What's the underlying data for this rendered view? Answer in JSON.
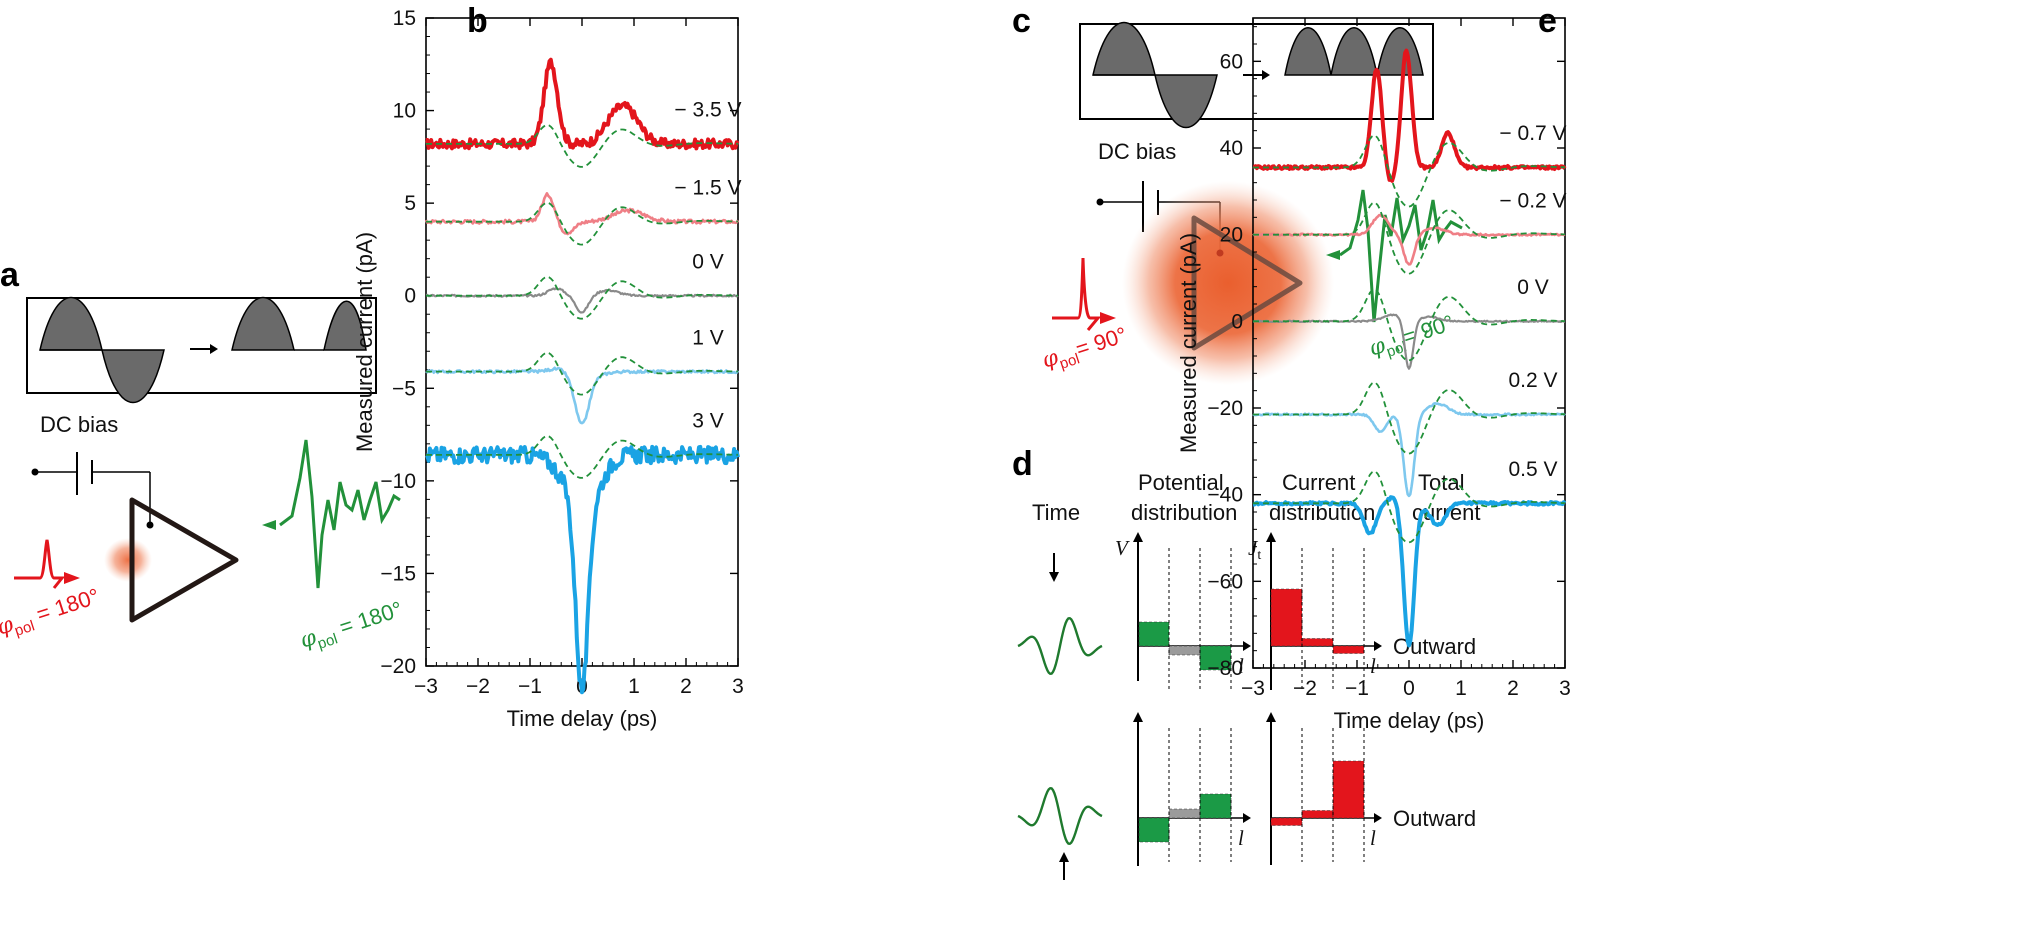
{
  "panels": {
    "a": "a",
    "b": "b",
    "c": "c",
    "d": "d",
    "e": "e"
  },
  "colors": {
    "red": "#e3151c",
    "lightred": "#ef7f86",
    "gray": "#8a8a8a",
    "lightblue": "#7ec8ee",
    "blue": "#1aa3e4",
    "green": "#22913a",
    "grayfill": "#6a6a6a",
    "orange": "#ec6a3c"
  },
  "panel_a": {
    "dc_bias": "DC bias",
    "phi_red": "φ",
    "pol_red": "pol",
    "val_red": " = 180°",
    "phi_green": "φ",
    "pol_green": "pol",
    "val_green": " = 180°"
  },
  "panel_c": {
    "dc_bias": "DC bias",
    "phi_red": "φ",
    "pol_red": "pol",
    "val_red": "= 90°",
    "phi_green": "φ",
    "pol_green": "pol",
    "val_green": "= 90°"
  },
  "panel_d": {
    "headers": {
      "time": "Time",
      "potential_1": "Potential",
      "potential_2": "distribution",
      "current_1": "Current",
      "current_2": "distribution",
      "total_1": "Total",
      "total_2": "current"
    },
    "v_axis": "V",
    "j_axis": "J",
    "j_sub": "t",
    "l_axis": "l",
    "outward": "Outward",
    "rows": [
      {
        "potential": [
          0.8,
          -0.3,
          -0.8
        ],
        "current": [
          1.9,
          0.25,
          -0.25
        ],
        "arrow": "down"
      },
      {
        "potential": [
          -0.8,
          0.3,
          0.8
        ],
        "current": [
          -0.25,
          0.25,
          1.9
        ],
        "arrow": "up"
      }
    ]
  },
  "chart_data": [
    {
      "panel": "b",
      "type": "line",
      "xlabel": "Time delay (ps)",
      "ylabel": "Measured current (pA)",
      "xlim": [
        -3,
        3
      ],
      "ylim": [
        -20,
        15
      ],
      "xticks": [
        "−3",
        "−2",
        "−1",
        "0",
        "1",
        "2",
        "3"
      ],
      "yticks": [
        "−20",
        "−15",
        "−10",
        "−5",
        "0",
        "5",
        "10",
        "15"
      ],
      "series": [
        {
          "name": "− 3.5 V",
          "offset": 8.2,
          "color": "red",
          "width": 4,
          "noise": 0.25,
          "features": [
            [
              -0.6,
              4.4,
              0.13
            ],
            [
              0.85,
              1.8,
              0.25
            ],
            [
              0.55,
              0.6,
              0.2
            ]
          ],
          "x": [
            -3,
            -2.5,
            -2,
            -1.5,
            -1,
            -0.8,
            -0.6,
            -0.4,
            -0.2,
            0,
            0.2,
            0.5,
            0.8,
            1.0,
            1.3,
            1.6,
            2,
            2.5,
            3
          ],
          "y": [
            8.2,
            8.2,
            8.1,
            8.3,
            8.5,
            9.5,
            12.6,
            8.6,
            8,
            7.9,
            8.5,
            9.3,
            10.2,
            9.6,
            8.5,
            8.1,
            8.2,
            8.2,
            8.2
          ]
        },
        {
          "name": "− 1.5 V",
          "offset": 4.0,
          "color": "lightred",
          "width": 2.6,
          "noise": 0.1,
          "features": [
            [
              -0.65,
              1.5,
              0.12
            ],
            [
              -0.3,
              -0.6,
              0.15
            ],
            [
              0.9,
              0.6,
              0.3
            ]
          ],
          "x": [
            -3,
            -2,
            -1,
            -0.65,
            -0.3,
            0,
            0.5,
            0.9,
            1.5,
            2,
            3
          ],
          "y": [
            4,
            4,
            4.1,
            5.5,
            3.4,
            3.5,
            3.9,
            4.6,
            4.1,
            4,
            4
          ]
        },
        {
          "name": "0 V",
          "offset": 0,
          "color": "gray",
          "width": 2.2,
          "noise": 0.05,
          "features": [
            [
              -0.5,
              0.4,
              0.15
            ],
            [
              0,
              -0.9,
              0.12
            ],
            [
              0.5,
              0.3,
              0.2
            ]
          ],
          "x": [
            -3,
            -1,
            -0.5,
            0,
            0.5,
            1,
            3
          ],
          "y": [
            0,
            0,
            0.4,
            -0.9,
            0.3,
            0,
            0
          ]
        },
        {
          "name": "1 V",
          "offset": -4.1,
          "color": "lightblue",
          "width": 2.6,
          "noise": 0.07,
          "features": [
            [
              -0.4,
              0.35,
              0.2
            ],
            [
              0,
              -2.4,
              0.13
            ],
            [
              -0.05,
              -0.5,
              0.3
            ]
          ],
          "x": [
            -3,
            -1,
            -0.4,
            0,
            0.5,
            1,
            3
          ],
          "y": [
            -4.1,
            -4.1,
            -3.8,
            -6.5,
            -4.3,
            -4.1,
            -4.1
          ]
        },
        {
          "name": "3 V",
          "offset": -8.6,
          "color": "blue",
          "width": 4,
          "noise": 0.45,
          "features": [
            [
              0,
              -10.5,
              0.12
            ],
            [
              -0.1,
              -2,
              0.3
            ],
            [
              0.3,
              -1,
              0.2
            ]
          ],
          "x": [
            -3,
            -2,
            -1,
            -0.5,
            -0.1,
            0,
            0.3,
            0.6,
            1,
            2,
            3
          ],
          "y": [
            -8.6,
            -8.6,
            -8.6,
            -9.3,
            -15,
            -19.1,
            -12,
            -9,
            -8.6,
            -8.6,
            -8.6
          ]
        }
      ],
      "reference_dashed": {
        "color": "green",
        "amp": 1.1,
        "shape": "derivative-like single cycle",
        "peak_x": -0.65,
        "trough_x": 0,
        "second_peak_x": 0.75
      },
      "voltage_labels": [
        "− 3.5 V",
        "− 1.5 V",
        "0 V",
        "1 V",
        "3 V"
      ]
    },
    {
      "panel": "e",
      "type": "line",
      "xlabel": "Time delay (ps)",
      "ylabel": "Measured current (pA)",
      "xlim": [
        -3,
        3
      ],
      "ylim": [
        -80,
        70
      ],
      "xticks": [
        "−3",
        "−2",
        "−1",
        "0",
        "1",
        "2",
        "3"
      ],
      "yticks": [
        "−80",
        "−60",
        "−40",
        "−20",
        "0",
        "20",
        "40",
        "60"
      ],
      "series": [
        {
          "name": "− 0.7 V",
          "offset": 35.5,
          "color": "red",
          "width": 4,
          "noise": 0.35,
          "features": [
            [
              -0.62,
              23,
              0.1
            ],
            [
              -0.05,
              27,
              0.1
            ],
            [
              0.75,
              8,
              0.12
            ],
            [
              -0.35,
              -4,
              0.1
            ]
          ],
          "x": [
            -3,
            -2,
            -1,
            -0.62,
            -0.35,
            -0.05,
            0.3,
            0.75,
            1.2,
            2,
            3
          ],
          "y": [
            36,
            35.5,
            36,
            59,
            38,
            63,
            36,
            44,
            36,
            35.5,
            35.5
          ]
        },
        {
          "name": "− 0.2 V",
          "offset": 20,
          "color": "lightred",
          "width": 2.6,
          "noise": 0.2,
          "features": [
            [
              -0.55,
              4.5,
              0.15
            ],
            [
              0,
              -7,
              0.1
            ],
            [
              0.5,
              1.5,
              0.2
            ]
          ],
          "x": [
            -3,
            -1,
            -0.55,
            0,
            0.5,
            1,
            3
          ],
          "y": [
            20,
            20,
            24.5,
            13,
            21,
            20,
            20
          ]
        },
        {
          "name": "0 V",
          "offset": 0,
          "color": "gray",
          "width": 2.2,
          "noise": 0.15,
          "features": [
            [
              -0.3,
              1.5,
              0.2
            ],
            [
              0,
              -11.5,
              0.08
            ],
            [
              0.4,
              1,
              0.2
            ]
          ],
          "x": [
            -3,
            -1,
            -0.3,
            0,
            0.4,
            1,
            3
          ],
          "y": [
            0,
            0,
            1.5,
            -11.5,
            1,
            0,
            0
          ]
        },
        {
          "name": "0.2 V",
          "offset": -21.5,
          "color": "lightblue",
          "width": 2.6,
          "noise": 0.2,
          "features": [
            [
              -0.55,
              -4,
              0.12
            ],
            [
              0,
              -19,
              0.1
            ],
            [
              0.55,
              2.5,
              0.2
            ]
          ],
          "x": [
            -3,
            -1,
            -0.55,
            0,
            0.55,
            1,
            3
          ],
          "y": [
            -21.5,
            -21.5,
            -25.5,
            -40.5,
            -19,
            -21.5,
            -21.5
          ]
        },
        {
          "name": "0.5 V",
          "offset": -42,
          "color": "blue",
          "width": 4,
          "noise": 0.3,
          "features": [
            [
              -0.75,
              -7,
              0.12
            ],
            [
              0,
              -33,
              0.1
            ],
            [
              0.55,
              -5,
              0.15
            ],
            [
              -0.3,
              1.5,
              0.1
            ]
          ],
          "x": [
            -3,
            -1,
            -0.75,
            -0.3,
            0,
            0.55,
            1,
            2,
            3
          ],
          "y": [
            -42,
            -42.5,
            -49,
            -40.5,
            -76,
            -47,
            -42.5,
            -42,
            -42
          ]
        }
      ],
      "reference_dashed": {
        "color": "green",
        "amp": 8,
        "shape": "derivative-like single cycle",
        "peak_x": -0.65,
        "trough_x": 0,
        "second_peak_x": 0.75
      },
      "voltage_labels": [
        "− 0.7 V",
        "− 0.2 V",
        "0 V",
        "0.2 V",
        "0.5 V"
      ]
    }
  ]
}
